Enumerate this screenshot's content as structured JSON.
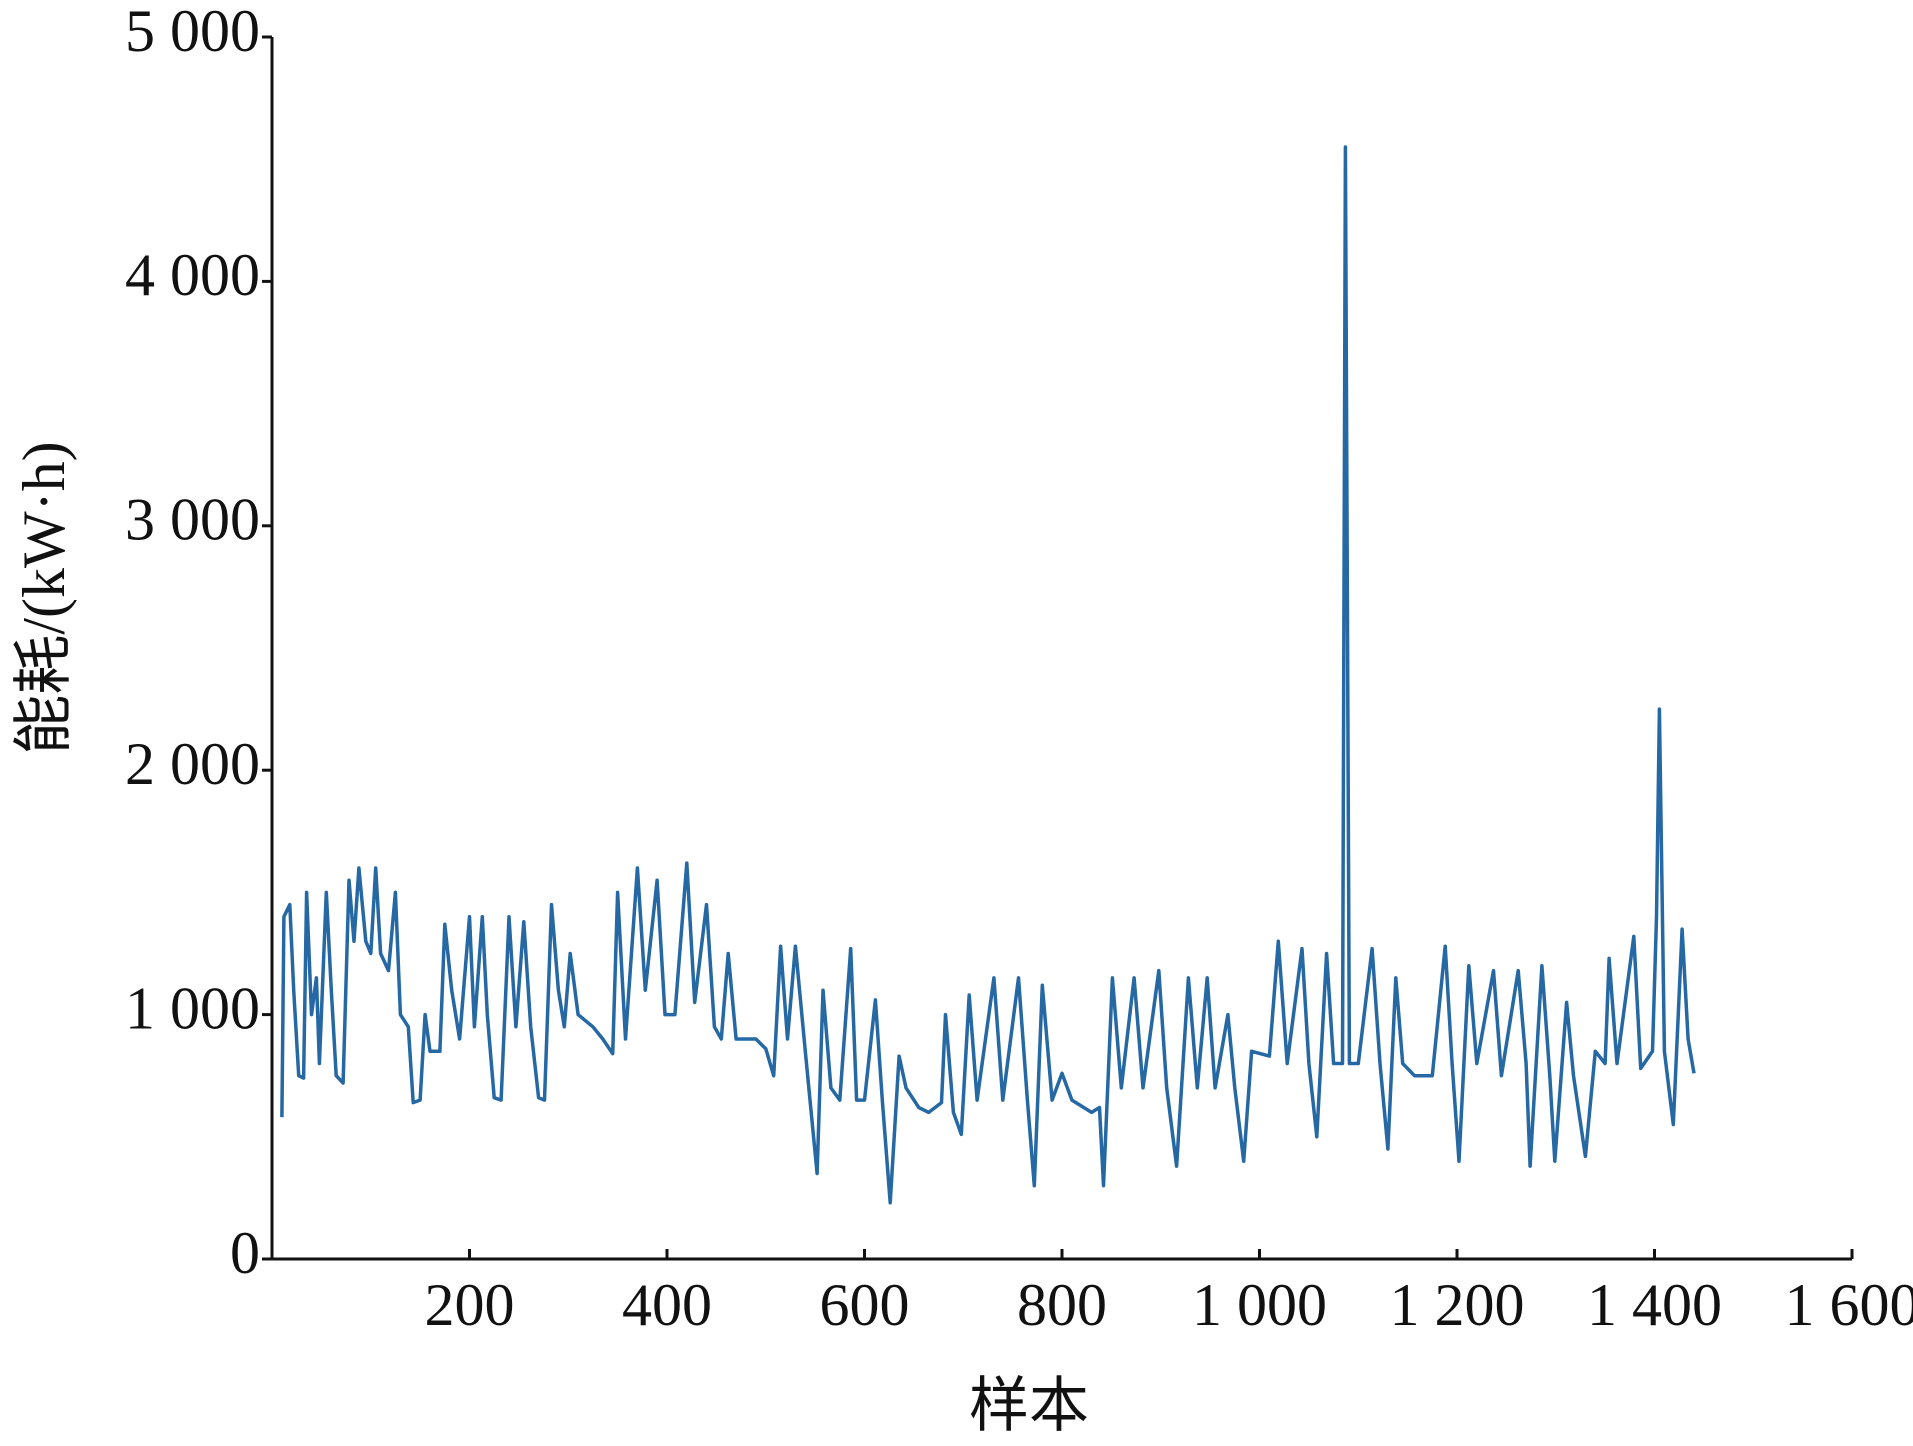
{
  "chart_data": {
    "type": "line",
    "xlabel": "样本",
    "ylabel": "能耗/(kW·h)",
    "color": "#2568a3",
    "xlim": [
      0,
      1600
    ],
    "ylim": [
      0,
      5000
    ],
    "xticks": [
      200,
      400,
      600,
      800,
      {
        "value": 1000,
        "label": "1 000"
      },
      {
        "value": 1200,
        "label": "1 200"
      },
      {
        "value": 1400,
        "label": "1 400"
      },
      {
        "value": 1600,
        "label": "1 600"
      }
    ],
    "yticks": [
      0,
      {
        "value": 1000,
        "label": "1 000"
      },
      {
        "value": 2000,
        "label": "2 000"
      },
      {
        "value": 3000,
        "label": "3 000"
      },
      {
        "value": 4000,
        "label": "4 000"
      },
      {
        "value": 5000,
        "label": "5 000"
      }
    ],
    "x": [
      10,
      12,
      18,
      22,
      27,
      32,
      35,
      40,
      45,
      48,
      55,
      60,
      65,
      72,
      78,
      83,
      88,
      95,
      100,
      105,
      110,
      118,
      125,
      130,
      138,
      143,
      150,
      155,
      160,
      170,
      175,
      182,
      190,
      200,
      205,
      213,
      218,
      225,
      232,
      240,
      247,
      255,
      262,
      270,
      276,
      283,
      290,
      296,
      302,
      310,
      325,
      335,
      345,
      350,
      358,
      370,
      378,
      390,
      398,
      408,
      420,
      428,
      440,
      448,
      455,
      462,
      470,
      490,
      500,
      508,
      515,
      522,
      530,
      540,
      552,
      558,
      566,
      575,
      586,
      592,
      600,
      611,
      618,
      626,
      635,
      642,
      655,
      665,
      678,
      682,
      690,
      698,
      706,
      714,
      731,
      740,
      756,
      765,
      772,
      780,
      790,
      800,
      810,
      830,
      838,
      842,
      851,
      860,
      873,
      882,
      898,
      906,
      916,
      928,
      937,
      947,
      955,
      968,
      975,
      984,
      992,
      1010,
      1019,
      1028,
      1043,
      1050,
      1058,
      1068,
      1075,
      1084,
      1087,
      1091,
      1100,
      1114,
      1122,
      1130,
      1138,
      1145,
      1157,
      1175,
      1188,
      1195,
      1202,
      1212,
      1220,
      1237,
      1245,
      1262,
      1270,
      1274,
      1286,
      1294,
      1299,
      1311,
      1318,
      1330,
      1340,
      1350,
      1354,
      1362,
      1379,
      1386,
      1398,
      1402,
      1405,
      1410,
      1419,
      1428,
      1434,
      1440
    ],
    "values": [
      580,
      1400,
      1450,
      1100,
      750,
      740,
      1500,
      1000,
      1150,
      800,
      1500,
      1100,
      750,
      720,
      1550,
      1300,
      1600,
      1300,
      1250,
      1600,
      1250,
      1180,
      1500,
      1000,
      950,
      640,
      650,
      1000,
      850,
      850,
      1370,
      1100,
      900,
      1400,
      950,
      1400,
      1000,
      660,
      650,
      1400,
      950,
      1380,
      950,
      660,
      650,
      1450,
      1100,
      950,
      1250,
      1000,
      950,
      900,
      840,
      1500,
      900,
      1600,
      1100,
      1550,
      1000,
      1000,
      1620,
      1050,
      1450,
      950,
      900,
      1250,
      900,
      900,
      860,
      750,
      1280,
      900,
      1280,
      850,
      350,
      1100,
      700,
      650,
      1270,
      650,
      650,
      1060,
      650,
      230,
      830,
      700,
      620,
      600,
      640,
      1000,
      600,
      510,
      1080,
      650,
      1150,
      650,
      1150,
      650,
      300,
      1120,
      650,
      760,
      650,
      600,
      620,
      300,
      1150,
      700,
      1150,
      700,
      1180,
      700,
      380,
      1150,
      700,
      1150,
      700,
      1000,
      700,
      400,
      850,
      830,
      1300,
      800,
      1270,
      800,
      500,
      1250,
      800,
      800,
      4550,
      800,
      800,
      1270,
      800,
      450,
      1150,
      800,
      750,
      750,
      1280,
      800,
      400,
      1200,
      800,
      1180,
      750,
      1180,
      800,
      380,
      1200,
      750,
      400,
      1050,
      750,
      420,
      850,
      800,
      1230,
      800,
      1320,
      780,
      850,
      1400,
      2250,
      850,
      550,
      1350,
      900,
      760
    ]
  }
}
